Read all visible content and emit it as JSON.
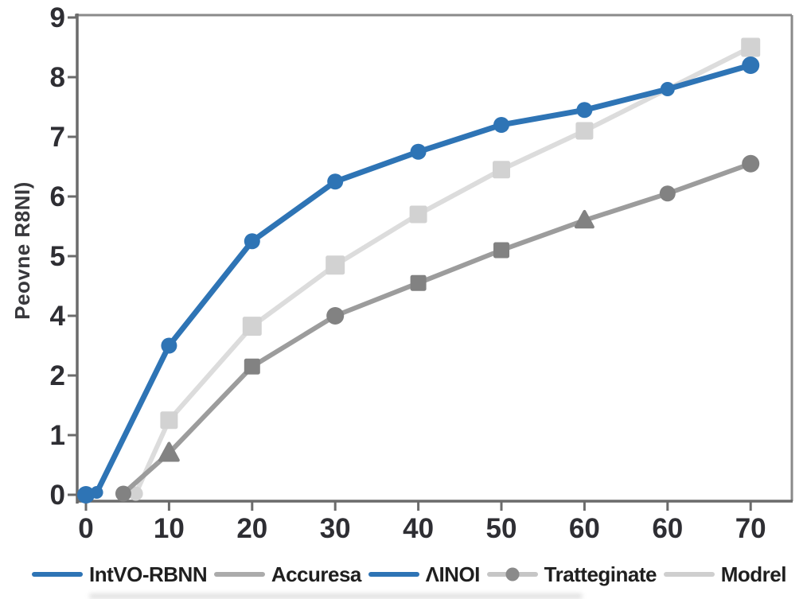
{
  "chart_data": {
    "type": "line",
    "title": "",
    "xlabel": "",
    "ylabel": "Peovne R8NI)",
    "x_tick_labels": [
      "0",
      "10",
      "20",
      "30",
      "40",
      "50",
      "60",
      "60",
      "70"
    ],
    "y_tick_labels": [
      "0",
      "1",
      "2",
      "4",
      "5",
      "6",
      "7",
      "8",
      "9"
    ],
    "y_tick_values": [
      0,
      1,
      2,
      4,
      5,
      6,
      7,
      8,
      9
    ],
    "grid": false,
    "legend_position": "bottom",
    "colors": {
      "axis": "#6B6B6B",
      "frame": "#8A8A8A",
      "tick_text": "#2E2E33",
      "legend_text": "#1F1F1F"
    },
    "series": [
      {
        "name": "IntVO-RBNN",
        "color": "#2E74B5",
        "marker_color": "#2E74B5",
        "line_width": 7,
        "points": [
          {
            "x": 0,
            "col": 0,
            "y": 0,
            "marker": "circle",
            "r": 11
          },
          {
            "x": 1,
            "col": 0.13,
            "y": 0.04,
            "marker": "circle",
            "r": 8
          },
          {
            "x": 10,
            "col": 1,
            "y": 3.0,
            "marker": "circle",
            "r": 10
          },
          {
            "x": 20,
            "col": 2,
            "y": 5.25,
            "marker": "circle",
            "r": 10
          },
          {
            "x": 30,
            "col": 3,
            "y": 6.25,
            "marker": "circle",
            "r": 10
          },
          {
            "x": 40,
            "col": 4,
            "y": 6.75,
            "marker": "circle",
            "r": 10
          },
          {
            "x": 50,
            "col": 5,
            "y": 7.2,
            "marker": "circle",
            "r": 10
          },
          {
            "x": 60,
            "col": 6,
            "y": 7.45,
            "marker": "circle",
            "r": 10
          },
          {
            "x": 60,
            "col": 7,
            "y": 7.8,
            "marker": "circle",
            "r": 9
          },
          {
            "x": 70,
            "col": 8,
            "y": 8.2,
            "marker": "circle",
            "r": 11
          }
        ]
      },
      {
        "name": "Tratteginate",
        "color": "#9C9C9C",
        "marker_color": "#828282",
        "line_width": 6,
        "points": [
          {
            "x": 4,
            "col": 0.45,
            "y": 0.02,
            "marker": "circle",
            "r": 10
          },
          {
            "x": 10,
            "col": 1,
            "y": 0.7,
            "marker": "triangle",
            "r": 12
          },
          {
            "x": 20,
            "col": 2,
            "y": 2.3,
            "marker": "square",
            "r": 10
          },
          {
            "x": 30,
            "col": 3,
            "y": 4.0,
            "marker": "circle",
            "r": 11
          },
          {
            "x": 40,
            "col": 4,
            "y": 4.55,
            "marker": "square",
            "r": 10
          },
          {
            "x": 50,
            "col": 5,
            "y": 5.1,
            "marker": "square",
            "r": 10
          },
          {
            "x": 60,
            "col": 6,
            "y": 5.6,
            "marker": "triangle",
            "r": 11
          },
          {
            "x": 60,
            "col": 7,
            "y": 6.05,
            "marker": "circle",
            "r": 10
          },
          {
            "x": 70,
            "col": 8,
            "y": 6.55,
            "marker": "circle",
            "r": 11
          }
        ]
      },
      {
        "name": "Modrel",
        "color": "#DCDCDC",
        "marker_color": "#D2D2D2",
        "line_width": 6,
        "points": [
          {
            "x": 5,
            "col": 0.6,
            "y": 0.02,
            "marker": "circle",
            "r": 9
          },
          {
            "x": 10,
            "col": 1,
            "y": 1.25,
            "marker": "square",
            "r": 11
          },
          {
            "x": 20,
            "col": 2,
            "y": 3.65,
            "marker": "square",
            "r": 12
          },
          {
            "x": 30,
            "col": 3,
            "y": 4.85,
            "marker": "square",
            "r": 12
          },
          {
            "x": 40,
            "col": 4,
            "y": 5.7,
            "marker": "square",
            "r": 11
          },
          {
            "x": 50,
            "col": 5,
            "y": 6.45,
            "marker": "square",
            "r": 11
          },
          {
            "x": 60,
            "col": 6,
            "y": 7.1,
            "marker": "square",
            "r": 11
          },
          {
            "x": 70,
            "col": 8,
            "y": 8.5,
            "marker": "square",
            "r": 12
          }
        ]
      }
    ],
    "legend": [
      {
        "label": "IntVO-RBNN",
        "swatch": "line",
        "color": "#2E74B5",
        "swatch_width": 64
      },
      {
        "label": "Accuresa",
        "swatch": "line",
        "color": "#ABABAB",
        "swatch_width": 64
      },
      {
        "label": "ΛINOI",
        "swatch": "line",
        "color": "#2E74B5",
        "swatch_width": 64
      },
      {
        "label": "Tratteginate",
        "swatch": "line-dot",
        "color": "#C6C6C6",
        "dot_color": "#8A8A8A",
        "swatch_width": 64
      },
      {
        "label": "Modrel",
        "swatch": "line",
        "color": "#CFCFCF",
        "swatch_width": 64
      }
    ]
  }
}
